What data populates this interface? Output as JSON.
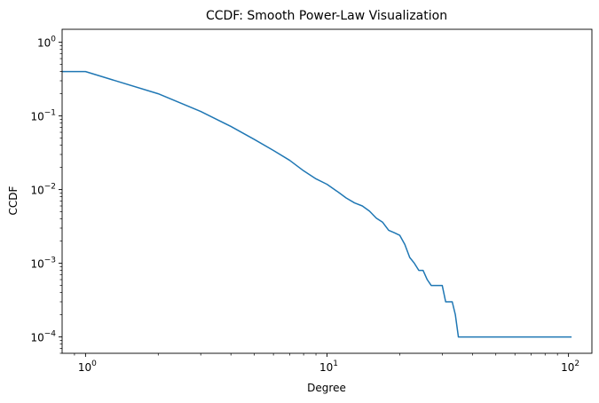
{
  "chart_data": {
    "type": "line",
    "title": "CCDF: Smooth Power-Law Visualization",
    "xlabel": "Degree",
    "ylabel": "CCDF",
    "xscale": "log",
    "yscale": "log",
    "xlim": [
      0.8,
      125
    ],
    "ylim": [
      6e-05,
      1.5
    ],
    "grid": false,
    "line_color": "#1f77b4",
    "x_ticks": [
      {
        "value": 1,
        "base": "10",
        "exp": "0"
      },
      {
        "value": 10,
        "base": "10",
        "exp": "1"
      },
      {
        "value": 100,
        "base": "10",
        "exp": "2"
      }
    ],
    "y_ticks": [
      {
        "value": 1,
        "base": "10",
        "exp": "0"
      },
      {
        "value": 0.1,
        "base": "10",
        "exp": "−1"
      },
      {
        "value": 0.01,
        "base": "10",
        "exp": "−2"
      },
      {
        "value": 0.001,
        "base": "10",
        "exp": "−3"
      },
      {
        "value": 0.0001,
        "base": "10",
        "exp": "−4"
      }
    ],
    "series": [
      {
        "x": [
          0.8,
          1,
          2,
          3,
          4,
          5,
          6,
          7,
          8,
          9,
          10,
          11,
          12,
          13,
          14,
          15,
          16,
          17,
          18,
          19,
          20,
          21,
          22,
          23,
          24,
          25,
          26,
          27,
          28,
          29,
          30,
          31,
          32,
          33,
          34,
          35,
          36,
          40,
          50,
          60,
          70,
          80,
          90,
          103
        ],
        "y": [
          0.4,
          0.4,
          0.2,
          0.115,
          0.072,
          0.048,
          0.034,
          0.025,
          0.018,
          0.014,
          0.0118,
          0.0095,
          0.0077,
          0.0066,
          0.006,
          0.0051,
          0.0041,
          0.0036,
          0.0028,
          0.0026,
          0.0024,
          0.0018,
          0.0012,
          0.001,
          0.0008,
          0.0008,
          0.0006,
          0.0005,
          0.0005,
          0.0005,
          0.0005,
          0.0003,
          0.0003,
          0.0003,
          0.0002,
          0.0001,
          0.0001,
          0.0001,
          0.0001,
          0.0001,
          0.0001,
          0.0001,
          0.0001,
          0.0001
        ]
      }
    ]
  }
}
